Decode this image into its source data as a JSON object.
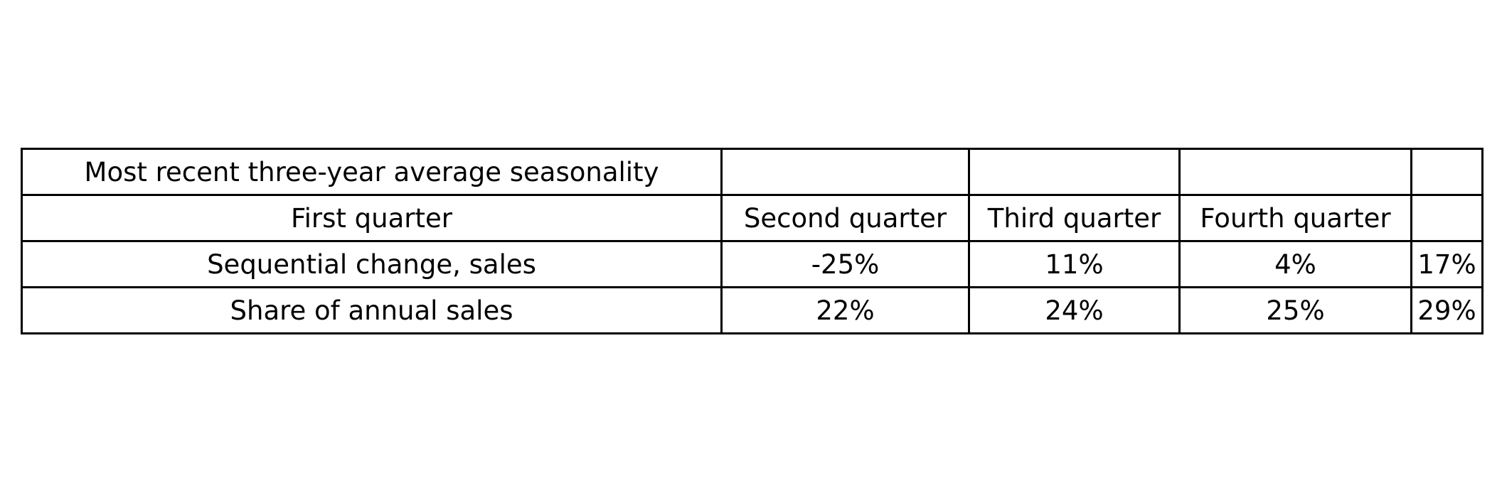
{
  "chart_data": {
    "type": "table",
    "rows": [
      [
        "Most recent three-year average seasonality",
        "",
        "",
        "",
        ""
      ],
      [
        "First quarter",
        "Second quarter",
        "Third quarter",
        "Fourth quarter",
        ""
      ],
      [
        "Sequential change, sales",
        "-25%",
        "11%",
        "4%",
        "17%"
      ],
      [
        "Share of annual sales",
        "22%",
        "24%",
        "25%",
        "29%"
      ]
    ]
  }
}
